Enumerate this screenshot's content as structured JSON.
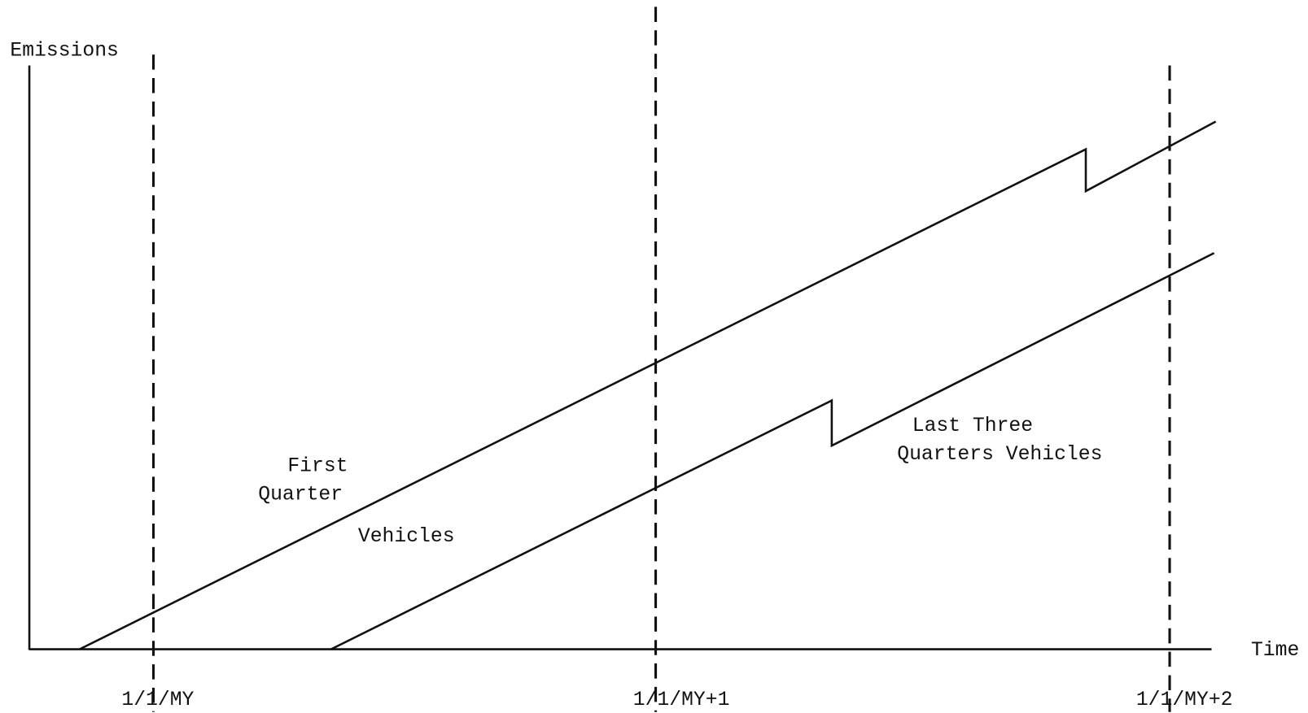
{
  "axes": {
    "y_label": "Emissions",
    "x_label": "Time"
  },
  "dates": [
    "1/1/MY",
    "1/1/MY+1",
    "1/1/MY+2"
  ],
  "labels": {
    "first_quarter": [
      "First",
      "Quarter",
      "Vehicles"
    ],
    "last_three_quarters": [
      "Last Three",
      "Quarters Vehicles"
    ]
  }
}
